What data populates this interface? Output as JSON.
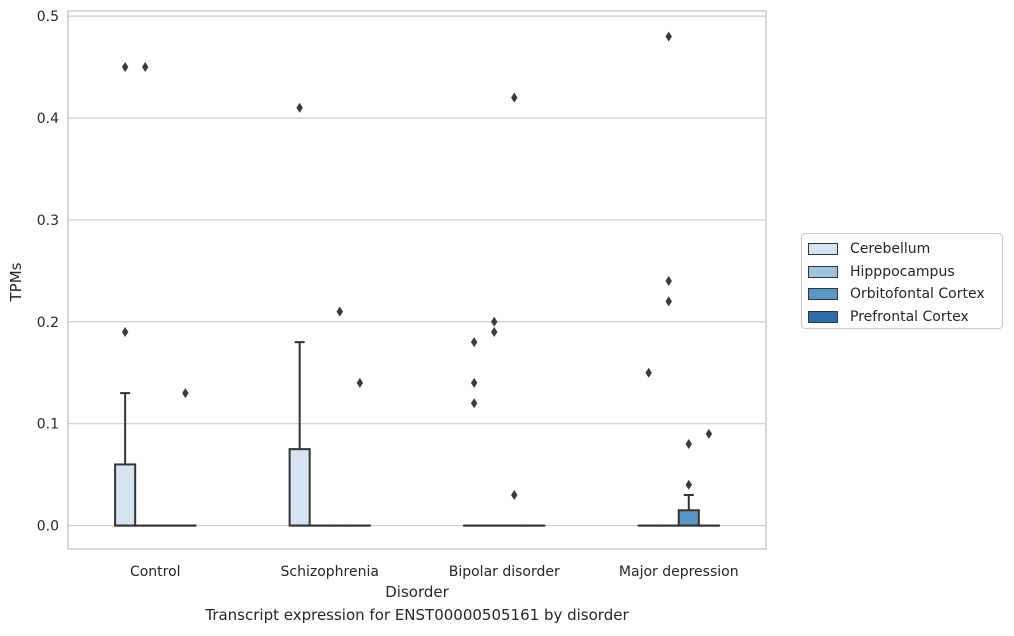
{
  "chart_data": {
    "type": "box",
    "title": "",
    "caption": "Transcript expression for ENST00000505161 by disorder",
    "xlabel": "Disorder",
    "ylabel": "TPMs",
    "ylim": [
      -0.023,
      0.505
    ],
    "yticks": [
      "0.0",
      "0.1",
      "0.2",
      "0.3",
      "0.4",
      "0.5"
    ],
    "ytick_values": [
      0,
      0.1,
      0.2,
      0.3,
      0.4,
      0.5
    ],
    "grid": true,
    "legend_position": "right-center",
    "categories": [
      "Control",
      "Schizophrenia",
      "Bipolar disorder",
      "Major depression"
    ],
    "series": [
      {
        "name": "Cerebellum",
        "color": "#d6e4f2",
        "boxes": [
          {
            "q1": 0,
            "median": 0,
            "q3": 0.06,
            "whisker_low": 0,
            "whisker_high": 0.13,
            "outliers": [
              0.19,
              0.45
            ]
          },
          {
            "q1": 0,
            "median": 0,
            "q3": 0.075,
            "whisker_low": 0,
            "whisker_high": 0.18,
            "outliers": [
              0.41
            ]
          },
          {
            "q1": 0,
            "median": 0,
            "q3": 0,
            "whisker_low": 0,
            "whisker_high": 0,
            "outliers": [
              0.12,
              0.14,
              0.18
            ]
          },
          {
            "q1": 0,
            "median": 0,
            "q3": 0,
            "whisker_low": 0,
            "whisker_high": 0,
            "outliers": [
              0.15
            ]
          }
        ]
      },
      {
        "name": "Hipppocampus",
        "color": "#9fc4dd",
        "boxes": [
          {
            "q1": 0,
            "median": 0,
            "q3": 0,
            "whisker_low": 0,
            "whisker_high": 0,
            "outliers": [
              0.45
            ]
          },
          {
            "q1": 0,
            "median": 0,
            "q3": 0,
            "whisker_low": 0,
            "whisker_high": 0,
            "outliers": []
          },
          {
            "q1": 0,
            "median": 0,
            "q3": 0,
            "whisker_low": 0,
            "whisker_high": 0,
            "outliers": [
              0.19,
              0.2
            ]
          },
          {
            "q1": 0,
            "median": 0,
            "q3": 0,
            "whisker_low": 0,
            "whisker_high": 0,
            "outliers": [
              0.22,
              0.24,
              0.48
            ]
          }
        ]
      },
      {
        "name": "Orbitofontal Cortex",
        "color": "#5b97c5",
        "boxes": [
          {
            "q1": 0,
            "median": 0,
            "q3": 0,
            "whisker_low": 0,
            "whisker_high": 0,
            "outliers": []
          },
          {
            "q1": 0,
            "median": 0,
            "q3": 0,
            "whisker_low": 0,
            "whisker_high": 0,
            "outliers": [
              0.21
            ]
          },
          {
            "q1": 0,
            "median": 0,
            "q3": 0,
            "whisker_low": 0,
            "whisker_high": 0,
            "outliers": [
              0.03,
              0.42
            ]
          },
          {
            "q1": 0,
            "median": 0,
            "q3": 0.015,
            "whisker_low": 0,
            "whisker_high": 0.03,
            "outliers": [
              0.04,
              0.08
            ]
          }
        ]
      },
      {
        "name": "Prefrontal Cortex",
        "color": "#2f6ca8",
        "boxes": [
          {
            "q1": 0,
            "median": 0,
            "q3": 0,
            "whisker_low": 0,
            "whisker_high": 0,
            "outliers": [
              0.13
            ]
          },
          {
            "q1": 0,
            "median": 0,
            "q3": 0,
            "whisker_low": 0,
            "whisker_high": 0,
            "outliers": [
              0.14
            ]
          },
          {
            "q1": 0,
            "median": 0,
            "q3": 0,
            "whisker_low": 0,
            "whisker_high": 0,
            "outliers": []
          },
          {
            "q1": 0,
            "median": 0,
            "q3": 0,
            "whisker_low": 0,
            "whisker_high": 0,
            "outliers": [
              0.09
            ]
          }
        ]
      }
    ]
  }
}
